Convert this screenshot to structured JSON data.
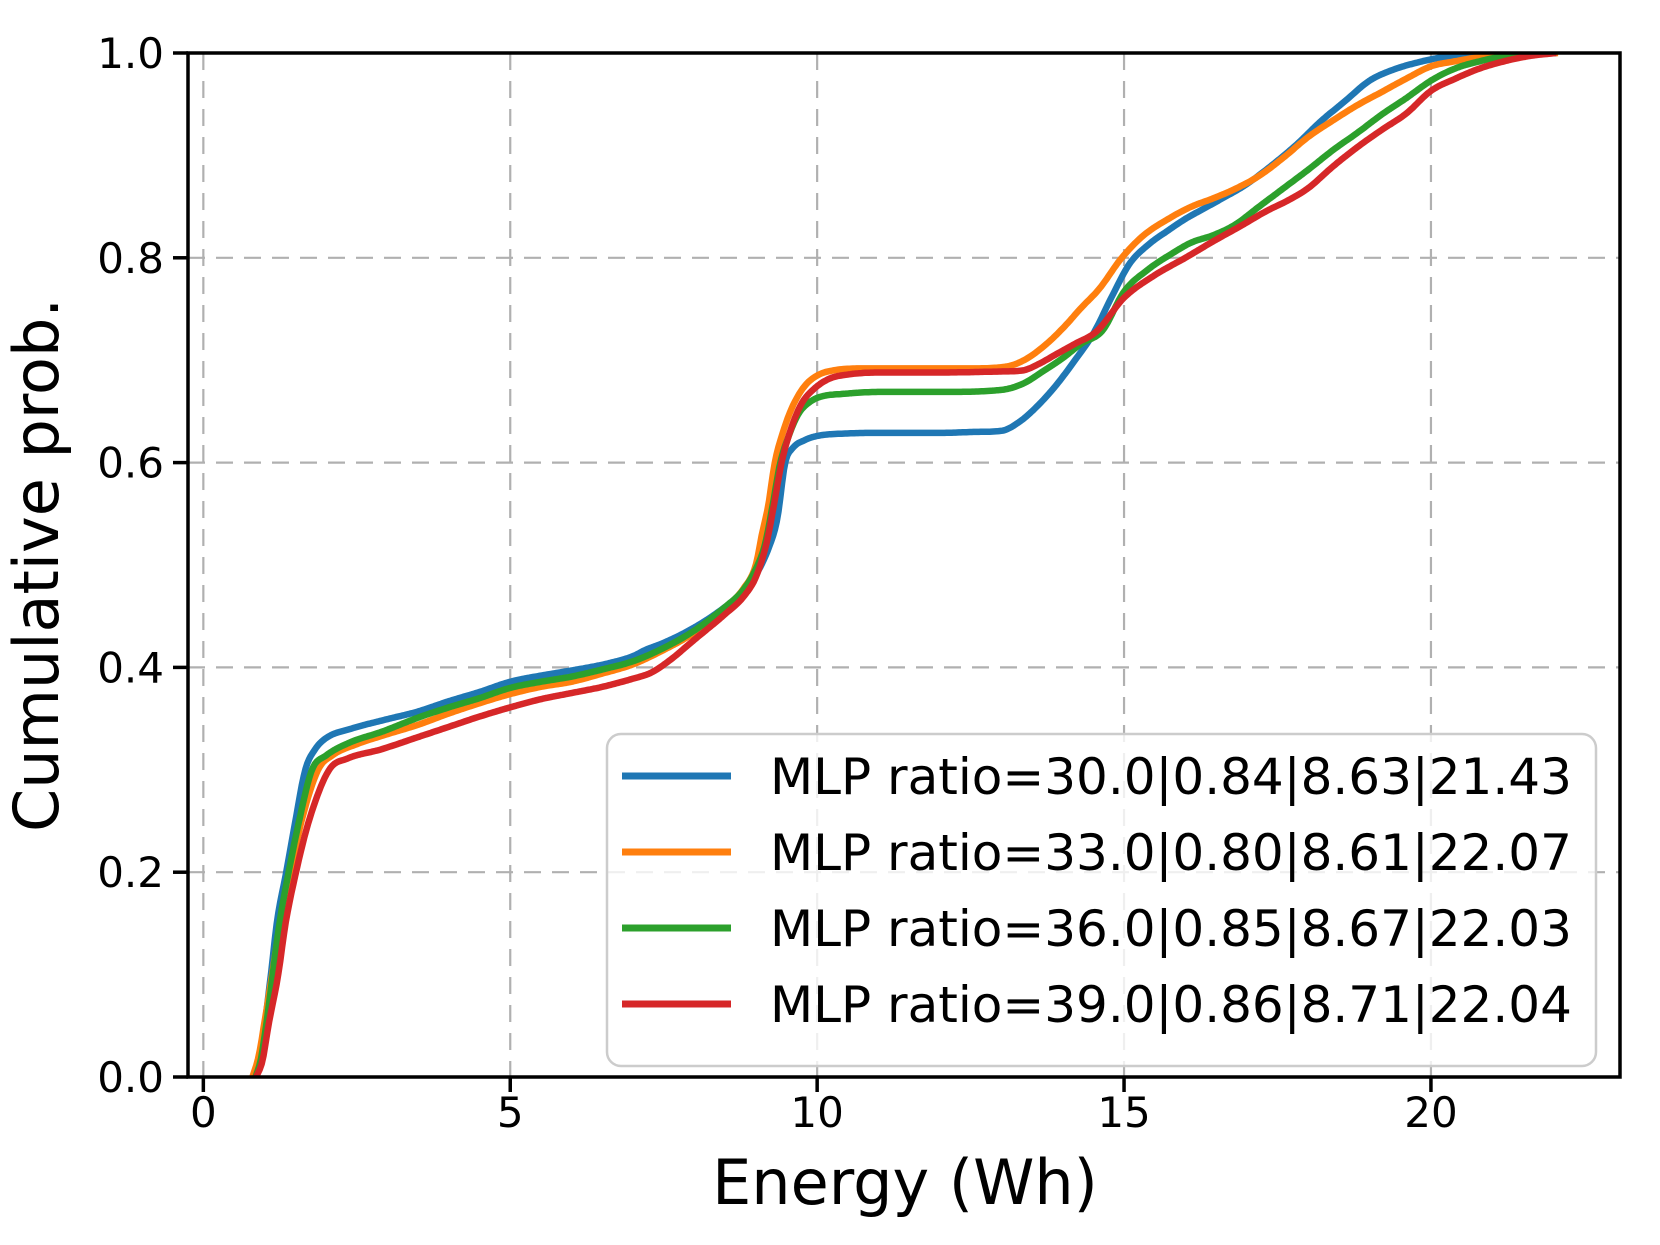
{
  "chart_data": {
    "type": "line",
    "subtype": "empirical-cdf",
    "title": "",
    "xlabel": "Energy (Wh)",
    "ylabel": "Cumulative prob.",
    "xlim": [
      -0.25,
      23.08
    ],
    "ylim": [
      0.0,
      1.0
    ],
    "xticks": [
      {
        "value": 0,
        "label": "0"
      },
      {
        "value": 5,
        "label": "5"
      },
      {
        "value": 10,
        "label": "10"
      },
      {
        "value": 15,
        "label": "15"
      },
      {
        "value": 20,
        "label": "20"
      }
    ],
    "yticks": [
      {
        "value": 0.0,
        "label": "0.0"
      },
      {
        "value": 0.2,
        "label": "0.2"
      },
      {
        "value": 0.4,
        "label": "0.4"
      },
      {
        "value": 0.6,
        "label": "0.6"
      },
      {
        "value": 0.8,
        "label": "0.8"
      },
      {
        "value": 1.0,
        "label": "1.0"
      }
    ],
    "grid": {
      "visible": true,
      "style": "dashed",
      "color": "#b0b0b0"
    },
    "legend": {
      "location": "inside-lower-right",
      "border_color": "#cccccc",
      "background": "rgba(255,255,255,0.8)"
    },
    "series": [
      {
        "name": "MLP ratio=30.0|0.84|8.63|21.43",
        "color": "#1f77b4",
        "points": [
          [
            0.84,
            0.0
          ],
          [
            0.92,
            0.015
          ],
          [
            1.0,
            0.05
          ],
          [
            1.1,
            0.1
          ],
          [
            1.2,
            0.152
          ],
          [
            1.35,
            0.2
          ],
          [
            1.5,
            0.25
          ],
          [
            1.66,
            0.3
          ],
          [
            1.82,
            0.32
          ],
          [
            2.0,
            0.331
          ],
          [
            2.4,
            0.34
          ],
          [
            2.9,
            0.348
          ],
          [
            3.5,
            0.357
          ],
          [
            4.0,
            0.367
          ],
          [
            4.5,
            0.376
          ],
          [
            5.0,
            0.386
          ],
          [
            5.5,
            0.392
          ],
          [
            6.0,
            0.397
          ],
          [
            6.6,
            0.404
          ],
          [
            7.0,
            0.411
          ],
          [
            7.2,
            0.417
          ],
          [
            7.5,
            0.424
          ],
          [
            8.0,
            0.439
          ],
          [
            8.5,
            0.459
          ],
          [
            8.8,
            0.474
          ],
          [
            9.0,
            0.49
          ],
          [
            9.2,
            0.515
          ],
          [
            9.35,
            0.545
          ],
          [
            9.48,
            0.6
          ],
          [
            9.6,
            0.614
          ],
          [
            9.8,
            0.622
          ],
          [
            10.0,
            0.626
          ],
          [
            10.5,
            0.6285
          ],
          [
            11.0,
            0.629
          ],
          [
            12.0,
            0.629
          ],
          [
            12.6,
            0.63
          ],
          [
            13.0,
            0.631
          ],
          [
            13.3,
            0.64
          ],
          [
            13.6,
            0.656
          ],
          [
            13.9,
            0.676
          ],
          [
            14.2,
            0.7
          ],
          [
            14.5,
            0.726
          ],
          [
            14.8,
            0.762
          ],
          [
            15.1,
            0.795
          ],
          [
            15.4,
            0.813
          ],
          [
            15.7,
            0.826
          ],
          [
            16.0,
            0.838
          ],
          [
            16.3,
            0.848
          ],
          [
            16.6,
            0.858
          ],
          [
            17.0,
            0.872
          ],
          [
            17.4,
            0.89
          ],
          [
            17.8,
            0.91
          ],
          [
            18.2,
            0.933
          ],
          [
            18.6,
            0.953
          ],
          [
            19.0,
            0.973
          ],
          [
            19.4,
            0.984
          ],
          [
            19.8,
            0.991
          ],
          [
            20.2,
            0.996
          ],
          [
            20.6,
            0.998
          ],
          [
            21.0,
            0.9993
          ],
          [
            21.43,
            1.0
          ]
        ]
      },
      {
        "name": "MLP ratio=33.0|0.80|8.61|22.07",
        "color": "#ff7f0e",
        "points": [
          [
            0.8,
            0.0
          ],
          [
            0.9,
            0.02
          ],
          [
            1.0,
            0.055
          ],
          [
            1.12,
            0.1
          ],
          [
            1.25,
            0.15
          ],
          [
            1.42,
            0.2
          ],
          [
            1.6,
            0.25
          ],
          [
            1.87,
            0.3
          ],
          [
            2.1,
            0.314
          ],
          [
            2.5,
            0.325
          ],
          [
            2.9,
            0.333
          ],
          [
            3.5,
            0.344
          ],
          [
            4.0,
            0.355
          ],
          [
            4.5,
            0.365
          ],
          [
            5.0,
            0.374
          ],
          [
            5.5,
            0.381
          ],
          [
            6.0,
            0.386
          ],
          [
            6.5,
            0.394
          ],
          [
            7.0,
            0.403
          ],
          [
            7.5,
            0.417
          ],
          [
            8.0,
            0.434
          ],
          [
            8.5,
            0.458
          ],
          [
            8.8,
            0.477
          ],
          [
            9.0,
            0.5
          ],
          [
            9.1,
            0.53
          ],
          [
            9.2,
            0.557
          ],
          [
            9.31,
            0.6
          ],
          [
            9.45,
            0.631
          ],
          [
            9.6,
            0.655
          ],
          [
            9.8,
            0.675
          ],
          [
            10.0,
            0.685
          ],
          [
            10.26,
            0.69
          ],
          [
            10.8,
            0.692
          ],
          [
            11.5,
            0.692
          ],
          [
            12.5,
            0.692
          ],
          [
            13.1,
            0.694
          ],
          [
            13.4,
            0.701
          ],
          [
            13.7,
            0.714
          ],
          [
            14.0,
            0.731
          ],
          [
            14.3,
            0.751
          ],
          [
            14.6,
            0.77
          ],
          [
            14.95,
            0.799
          ],
          [
            15.3,
            0.821
          ],
          [
            15.75,
            0.839
          ],
          [
            16.1,
            0.85
          ],
          [
            16.45,
            0.858
          ],
          [
            16.8,
            0.867
          ],
          [
            17.2,
            0.88
          ],
          [
            17.6,
            0.898
          ],
          [
            18.0,
            0.918
          ],
          [
            18.4,
            0.934
          ],
          [
            18.8,
            0.949
          ],
          [
            19.2,
            0.962
          ],
          [
            19.6,
            0.975
          ],
          [
            20.0,
            0.987
          ],
          [
            20.4,
            0.992
          ],
          [
            20.8,
            0.996
          ],
          [
            21.3,
            0.9987
          ],
          [
            22.07,
            1.0
          ]
        ]
      },
      {
        "name": "MLP ratio=36.0|0.85|8.67|22.03",
        "color": "#2ca02c",
        "points": [
          [
            0.85,
            0.0
          ],
          [
            0.94,
            0.018
          ],
          [
            1.04,
            0.058
          ],
          [
            1.13,
            0.1
          ],
          [
            1.24,
            0.15
          ],
          [
            1.39,
            0.2
          ],
          [
            1.56,
            0.25
          ],
          [
            1.77,
            0.3
          ],
          [
            2.0,
            0.314
          ],
          [
            2.4,
            0.327
          ],
          [
            2.9,
            0.337
          ],
          [
            3.5,
            0.351
          ],
          [
            4.0,
            0.361
          ],
          [
            4.5,
            0.37
          ],
          [
            5.0,
            0.38
          ],
          [
            5.5,
            0.386
          ],
          [
            6.0,
            0.391
          ],
          [
            6.5,
            0.398
          ],
          [
            7.0,
            0.406
          ],
          [
            7.5,
            0.419
          ],
          [
            8.0,
            0.436
          ],
          [
            8.5,
            0.459
          ],
          [
            8.8,
            0.476
          ],
          [
            9.0,
            0.496
          ],
          [
            9.15,
            0.52
          ],
          [
            9.28,
            0.56
          ],
          [
            9.4,
            0.6
          ],
          [
            9.55,
            0.628
          ],
          [
            9.7,
            0.648
          ],
          [
            9.9,
            0.66
          ],
          [
            10.1,
            0.665
          ],
          [
            10.4,
            0.667
          ],
          [
            11.0,
            0.669
          ],
          [
            12.0,
            0.669
          ],
          [
            13.0,
            0.671
          ],
          [
            13.35,
            0.677
          ],
          [
            13.7,
            0.69
          ],
          [
            14.0,
            0.702
          ],
          [
            14.3,
            0.716
          ],
          [
            14.65,
            0.729
          ],
          [
            15.0,
            0.767
          ],
          [
            15.4,
            0.789
          ],
          [
            15.75,
            0.803
          ],
          [
            16.1,
            0.815
          ],
          [
            16.45,
            0.822
          ],
          [
            16.8,
            0.832
          ],
          [
            17.2,
            0.85
          ],
          [
            17.6,
            0.868
          ],
          [
            18.0,
            0.886
          ],
          [
            18.4,
            0.905
          ],
          [
            18.8,
            0.922
          ],
          [
            19.2,
            0.94
          ],
          [
            19.6,
            0.956
          ],
          [
            20.0,
            0.973
          ],
          [
            20.4,
            0.985
          ],
          [
            20.8,
            0.992
          ],
          [
            21.2,
            0.997
          ],
          [
            22.03,
            1.0
          ]
        ]
      },
      {
        "name": "MLP ratio=39.0|0.86|8.71|22.04",
        "color": "#d62728",
        "points": [
          [
            0.86,
            0.0
          ],
          [
            0.96,
            0.015
          ],
          [
            1.06,
            0.05
          ],
          [
            1.22,
            0.1
          ],
          [
            1.34,
            0.15
          ],
          [
            1.51,
            0.2
          ],
          [
            1.72,
            0.25
          ],
          [
            2.05,
            0.3
          ],
          [
            2.35,
            0.311
          ],
          [
            2.9,
            0.32
          ],
          [
            3.5,
            0.332
          ],
          [
            4.0,
            0.342
          ],
          [
            4.5,
            0.352
          ],
          [
            5.0,
            0.361
          ],
          [
            5.5,
            0.369
          ],
          [
            6.0,
            0.375
          ],
          [
            6.5,
            0.381
          ],
          [
            7.0,
            0.389
          ],
          [
            7.3,
            0.395
          ],
          [
            7.6,
            0.407
          ],
          [
            8.0,
            0.427
          ],
          [
            8.5,
            0.452
          ],
          [
            8.8,
            0.469
          ],
          [
            9.0,
            0.488
          ],
          [
            9.17,
            0.52
          ],
          [
            9.3,
            0.56
          ],
          [
            9.42,
            0.6
          ],
          [
            9.58,
            0.634
          ],
          [
            9.75,
            0.658
          ],
          [
            9.95,
            0.672
          ],
          [
            10.2,
            0.682
          ],
          [
            10.5,
            0.686
          ],
          [
            11.0,
            0.688
          ],
          [
            12.0,
            0.688
          ],
          [
            13.0,
            0.689
          ],
          [
            13.35,
            0.69
          ],
          [
            13.6,
            0.696
          ],
          [
            13.9,
            0.706
          ],
          [
            14.2,
            0.716
          ],
          [
            14.55,
            0.728
          ],
          [
            15.0,
            0.761
          ],
          [
            15.5,
            0.783
          ],
          [
            16.0,
            0.8
          ],
          [
            16.45,
            0.816
          ],
          [
            16.9,
            0.831
          ],
          [
            17.3,
            0.845
          ],
          [
            17.7,
            0.857
          ],
          [
            18.0,
            0.868
          ],
          [
            18.4,
            0.889
          ],
          [
            18.8,
            0.908
          ],
          [
            19.2,
            0.925
          ],
          [
            19.6,
            0.941
          ],
          [
            20.0,
            0.963
          ],
          [
            20.4,
            0.975
          ],
          [
            20.8,
            0.985
          ],
          [
            21.2,
            0.992
          ],
          [
            21.6,
            0.997
          ],
          [
            22.04,
            1.0
          ]
        ]
      }
    ]
  }
}
